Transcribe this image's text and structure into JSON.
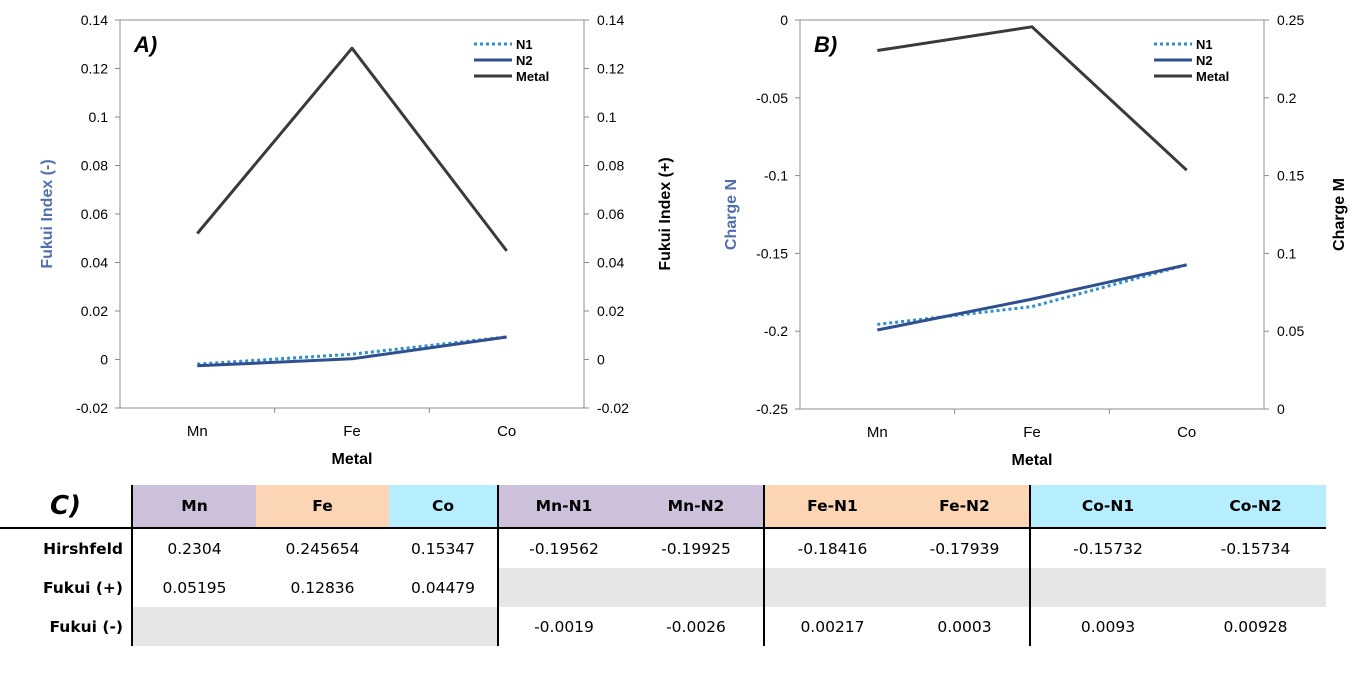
{
  "chart_data": [
    {
      "type": "line",
      "panel_label": "A)",
      "categories": [
        "Mn",
        "Fe",
        "Co"
      ],
      "xlabel": "Metal",
      "ylabel": "Fukui Index (-)",
      "y2label": "Fukui Index (+)",
      "ylim": [
        -0.02,
        0.14
      ],
      "y2lim": [
        -0.02,
        0.14
      ],
      "yticks": [
        "0.14",
        "0.12",
        "0.1",
        "0.08",
        "0.06",
        "0.04",
        "0.02",
        "0",
        "-0.02"
      ],
      "y2ticks": [
        "0.14",
        "0.12",
        "0.1",
        "0.08",
        "0.06",
        "0.04",
        "0.02",
        "0",
        "-0.02"
      ],
      "grid": false,
      "legend": "top-right",
      "series": [
        {
          "name": "N1",
          "axis": "left",
          "values": [
            -0.0019,
            0.00217,
            0.0093
          ],
          "color": "#2e8fd0",
          "style": "dotted"
        },
        {
          "name": "N2",
          "axis": "left",
          "values": [
            -0.0026,
            0.0003,
            0.00928
          ],
          "color": "#2f4f8f",
          "style": "solid"
        },
        {
          "name": "Metal",
          "axis": "right",
          "values": [
            0.05195,
            0.12836,
            0.04479
          ],
          "color": "#3a3a3a",
          "style": "solid"
        }
      ]
    },
    {
      "type": "line",
      "panel_label": "B)",
      "categories": [
        "Mn",
        "Fe",
        "Co"
      ],
      "xlabel": "Metal",
      "ylabel": "Charge N",
      "y2label": "Charge M",
      "ylim": [
        -0.25,
        0
      ],
      "y2lim": [
        0,
        0.25
      ],
      "yticks": [
        "0",
        "-0.05",
        "-0.1",
        "-0.15",
        "-0.2",
        "-0.25"
      ],
      "y2ticks": [
        "0.25",
        "0.2",
        "0.15",
        "0.1",
        "0.05",
        "0"
      ],
      "grid": false,
      "legend": "top-right",
      "series": [
        {
          "name": "N1",
          "axis": "left",
          "values": [
            -0.19562,
            -0.18416,
            -0.15732
          ],
          "color": "#2e8fd0",
          "style": "dotted"
        },
        {
          "name": "N2",
          "axis": "left",
          "values": [
            -0.19925,
            -0.17939,
            -0.15734
          ],
          "color": "#2f4f8f",
          "style": "solid"
        },
        {
          "name": "Metal",
          "axis": "right",
          "values": [
            0.2304,
            0.245654,
            0.15347
          ],
          "color": "#3a3a3a",
          "style": "solid"
        }
      ]
    }
  ],
  "table": {
    "label": "C)",
    "headers": [
      "Mn",
      "Fe",
      "Co",
      "Mn-N1",
      "Mn-N2",
      "Fe-N1",
      "Fe-N2",
      "Co-N1",
      "Co-N2"
    ],
    "header_colors": [
      "#ccc0da",
      "#fcd5b4",
      "#b7eeff",
      "#ccc0da",
      "#ccc0da",
      "#fcd5b4",
      "#fcd5b4",
      "#b7eeff",
      "#b7eeff"
    ],
    "rows": [
      {
        "label": "Hirshfeld",
        "cells": [
          "0.2304",
          "0.245654",
          "0.15347",
          "-0.19562",
          "-0.19925",
          "-0.18416",
          "-0.17939",
          "-0.15732",
          "-0.15734"
        ]
      },
      {
        "label": "Fukui (+)",
        "cells": [
          "0.05195",
          "0.12836",
          "0.04479",
          "",
          "",
          "",
          "",
          "",
          ""
        ]
      },
      {
        "label": "Fukui (-)",
        "cells": [
          "",
          "",
          "",
          "-0.0019",
          "-0.0026",
          "0.00217",
          "0.0003",
          "0.0093",
          "0.00928"
        ]
      }
    ]
  },
  "colors": {
    "left_axis_label": "#4f6fb0",
    "right_axis_label": "#000000",
    "cell_shade": "#e6e6e6"
  }
}
